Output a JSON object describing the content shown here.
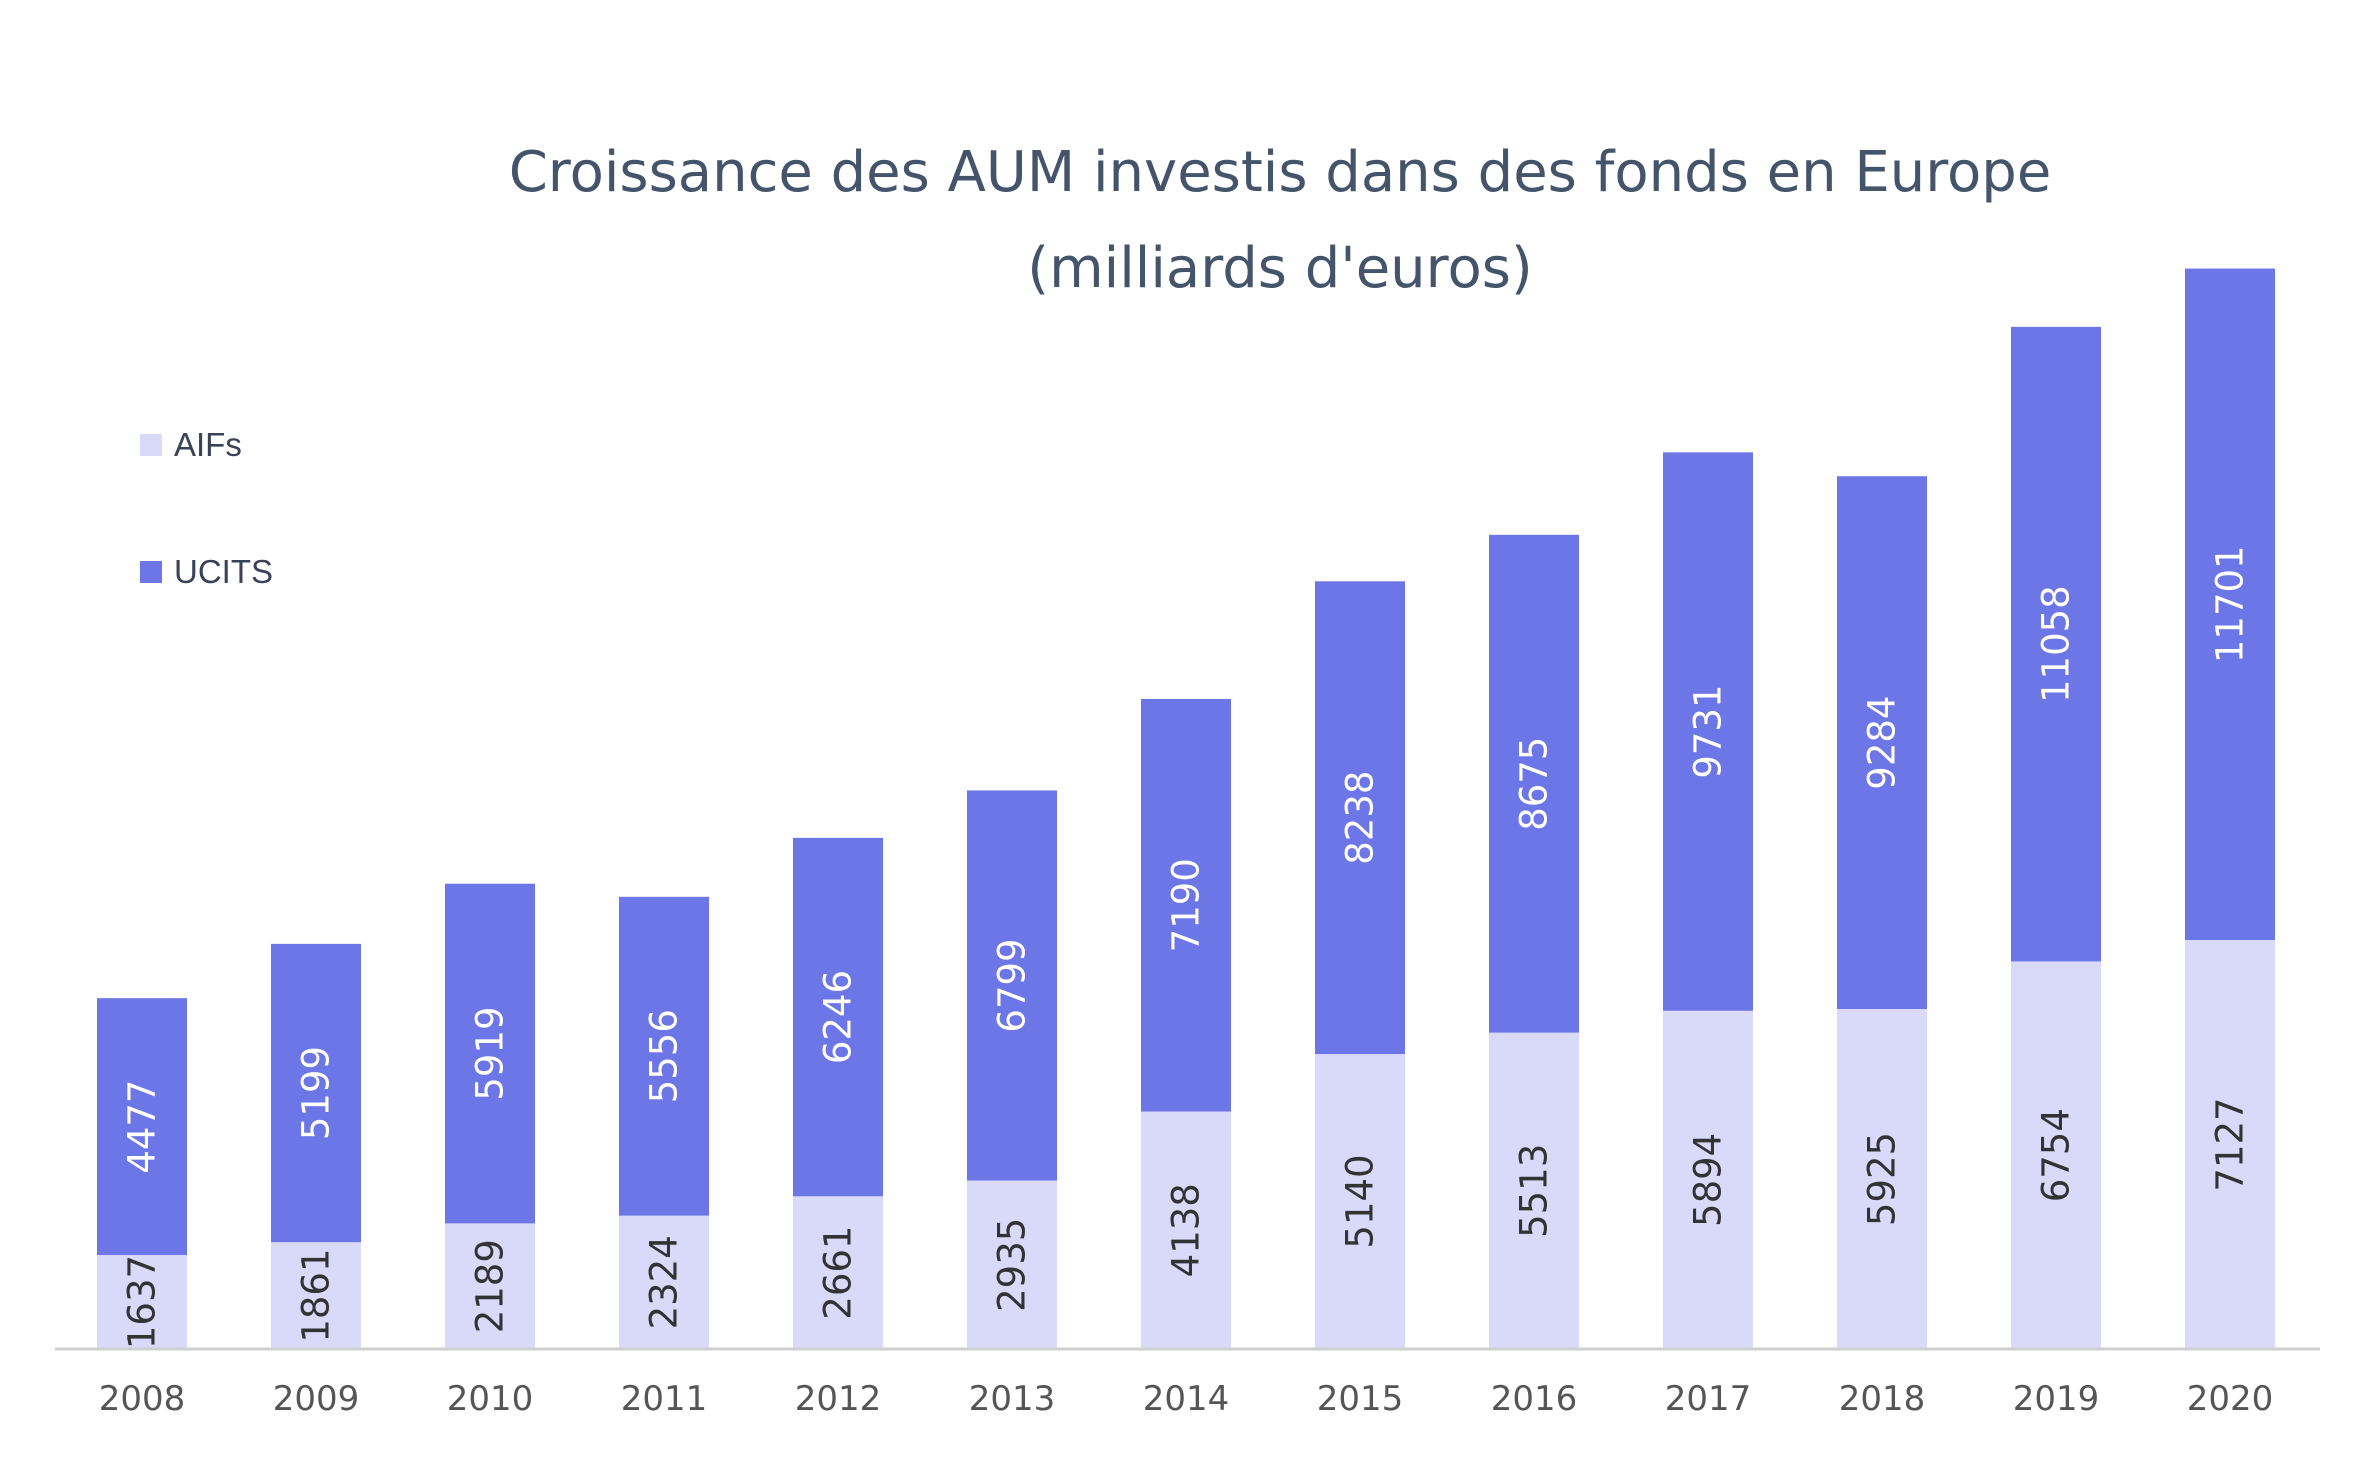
{
  "chart_data": {
    "type": "bar",
    "stacked": true,
    "title": "Croissance des AUM investis dans des fonds en Europe (milliards d'euros)",
    "categories": [
      "2008",
      "2009",
      "2010",
      "2011",
      "2012",
      "2013",
      "2014",
      "2015",
      "2016",
      "2017",
      "2018",
      "2019",
      "2020"
    ],
    "series": [
      {
        "name": "AIFs",
        "color": "#d9dafa",
        "label_color": "#333333",
        "values": [
          1637,
          1861,
          2189,
          2324,
          2661,
          2935,
          4138,
          5140,
          5513,
          5894,
          5925,
          6754,
          7127
        ]
      },
      {
        "name": "UCITS",
        "color": "#6d76e6",
        "label_color": "#ffffff",
        "values": [
          4477,
          5199,
          5919,
          5556,
          6246,
          6799,
          7190,
          8238,
          8675,
          9731,
          9284,
          11058,
          11701
        ]
      }
    ],
    "ylim": [
      0,
      19500
    ],
    "grid": false,
    "legend_position": "top-left",
    "xlabel": "",
    "ylabel": ""
  }
}
